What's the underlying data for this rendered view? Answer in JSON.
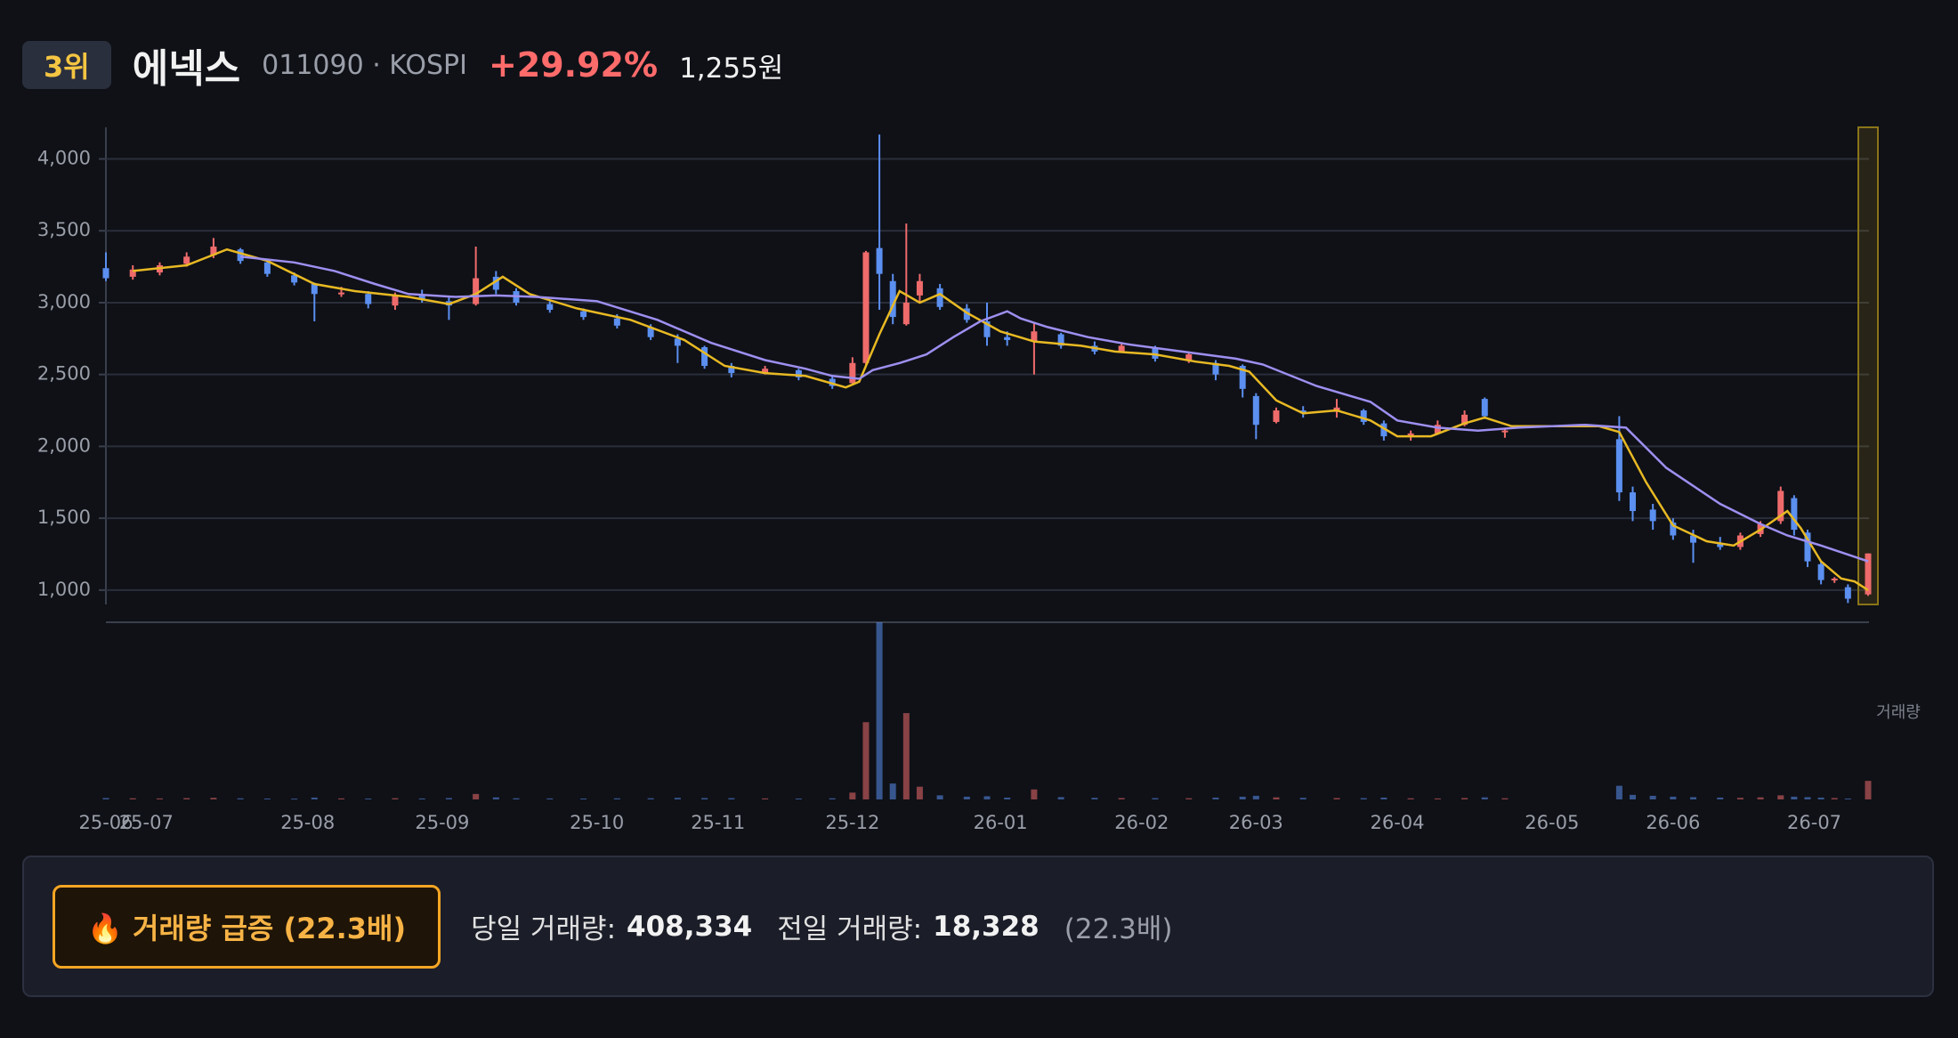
{
  "header": {
    "rank": "3위",
    "name": "에넥스",
    "code": "011090 · KOSPI",
    "change": "+29.92%",
    "price": "1,255원"
  },
  "summary": {
    "alert": "🔥 거래량 급증 (22.3배)",
    "today_label": "당일 거래량:",
    "today_value": "408,334",
    "prev_label": "전일 거래량:",
    "prev_value": "18,328",
    "ratio": "(22.3배)"
  },
  "chart_data": {
    "type": "candlestick",
    "up_color": "#ef6b6b",
    "down_color": "#5b8ff0",
    "xlim": [
      0,
      262
    ],
    "ylim": [
      900,
      4220
    ],
    "grid": true,
    "yticks": [
      {
        "value": 1000,
        "label": "1,000"
      },
      {
        "value": 1500,
        "label": "1,500"
      },
      {
        "value": 2000,
        "label": "2,000"
      },
      {
        "value": 2500,
        "label": "2,500"
      },
      {
        "value": 3000,
        "label": "3,000"
      },
      {
        "value": 3500,
        "label": "3,500"
      },
      {
        "value": 4000,
        "label": "4,000"
      }
    ],
    "xticks": [
      {
        "value": 0,
        "label": "25-06"
      },
      {
        "value": 6,
        "label": "25-07"
      },
      {
        "value": 30,
        "label": "25-08"
      },
      {
        "value": 50,
        "label": "25-09"
      },
      {
        "value": 73,
        "label": "25-10"
      },
      {
        "value": 91,
        "label": "25-11"
      },
      {
        "value": 111,
        "label": "25-12"
      },
      {
        "value": 133,
        "label": "26-01"
      },
      {
        "value": 154,
        "label": "26-02"
      },
      {
        "value": 171,
        "label": "26-03"
      },
      {
        "value": 192,
        "label": "26-04"
      },
      {
        "value": 215,
        "label": "26-05"
      },
      {
        "value": 233,
        "label": "26-06"
      },
      {
        "value": 254,
        "label": "26-07"
      }
    ],
    "candles": {
      "x": [
        0,
        4,
        8,
        12,
        16,
        20,
        24,
        28,
        31,
        35,
        39,
        43,
        47,
        51,
        55,
        58,
        61,
        66,
        71,
        76,
        81,
        85,
        89,
        93,
        98,
        103,
        108,
        111,
        113,
        115,
        117,
        119,
        121,
        124,
        128,
        131,
        134,
        138,
        142,
        147,
        151,
        156,
        161,
        165,
        169,
        171,
        174,
        178,
        183,
        187,
        190,
        194,
        198,
        202,
        205,
        208,
        225,
        227,
        230,
        233,
        236,
        240,
        243,
        246,
        249,
        251,
        253,
        255,
        257,
        259,
        262
      ],
      "open": [
        3240,
        3180,
        3210,
        3270,
        3330,
        3370,
        3280,
        3190,
        3130,
        3060,
        3060,
        2980,
        3050,
        3010,
        2990,
        3180,
        3080,
        2990,
        2940,
        2890,
        2830,
        2750,
        2690,
        2560,
        2510,
        2530,
        2470,
        2440,
        2580,
        3380,
        3150,
        2850,
        3050,
        3100,
        2960,
        2870,
        2760,
        2730,
        2780,
        2700,
        2660,
        2690,
        2600,
        2580,
        2560,
        2350,
        2170,
        2250,
        2240,
        2250,
        2160,
        2070,
        2090,
        2150,
        2330,
        2100,
        2050,
        1680,
        1560,
        1470,
        1380,
        1320,
        1300,
        1390,
        1480,
        1640,
        1400,
        1180,
        1070,
        1020,
        970
      ],
      "high": [
        3350,
        3260,
        3280,
        3350,
        3450,
        3380,
        3300,
        3210,
        3140,
        3110,
        3080,
        3070,
        3090,
        3040,
        3390,
        3220,
        3100,
        3010,
        2960,
        2920,
        2850,
        2780,
        2700,
        2580,
        2560,
        2540,
        2490,
        2620,
        3360,
        4170,
        3200,
        3550,
        3200,
        3130,
        2990,
        3000,
        2800,
        2860,
        2790,
        2730,
        2720,
        2700,
        2660,
        2600,
        2570,
        2370,
        2270,
        2280,
        2330,
        2260,
        2180,
        2110,
        2180,
        2250,
        2340,
        2130,
        2210,
        1720,
        1600,
        1500,
        1420,
        1370,
        1400,
        1480,
        1720,
        1660,
        1420,
        1200,
        1090,
        1040,
        1255
      ],
      "low": [
        3150,
        3160,
        3190,
        3250,
        3310,
        3270,
        3180,
        3120,
        2870,
        3040,
        2960,
        2950,
        3000,
        2880,
        2980,
        3060,
        2980,
        2930,
        2880,
        2820,
        2740,
        2580,
        2540,
        2480,
        2500,
        2460,
        2400,
        2430,
        2560,
        2950,
        2850,
        2840,
        3000,
        2950,
        2860,
        2700,
        2700,
        2500,
        2680,
        2640,
        2650,
        2590,
        2580,
        2460,
        2340,
        2050,
        2160,
        2200,
        2200,
        2150,
        2040,
        2040,
        2080,
        2140,
        2190,
        2060,
        1620,
        1480,
        1420,
        1350,
        1190,
        1280,
        1280,
        1370,
        1460,
        1380,
        1160,
        1040,
        1050,
        910,
        960
      ],
      "close": [
        3170,
        3230,
        3260,
        3320,
        3390,
        3290,
        3200,
        3140,
        3060,
        3070,
        2990,
        3050,
        3020,
        2980,
        3170,
        3090,
        3000,
        2950,
        2900,
        2840,
        2760,
        2700,
        2560,
        2510,
        2540,
        2480,
        2420,
        2580,
        3350,
        3200,
        2900,
        3000,
        3150,
        2970,
        2880,
        2760,
        2740,
        2800,
        2700,
        2660,
        2700,
        2610,
        2640,
        2500,
        2400,
        2150,
        2250,
        2230,
        2270,
        2170,
        2070,
        2090,
        2150,
        2220,
        2210,
        2110,
        1680,
        1550,
        1480,
        1380,
        1330,
        1300,
        1380,
        1460,
        1690,
        1420,
        1200,
        1070,
        1080,
        940,
        1255
      ],
      "volume": [
        30000,
        25000,
        22000,
        28000,
        35000,
        24000,
        20000,
        18000,
        40000,
        22000,
        20000,
        26000,
        21000,
        30000,
        120000,
        45000,
        25000,
        22000,
        20000,
        24000,
        26000,
        35000,
        30000,
        28000,
        22000,
        20000,
        25000,
        150000,
        1700000,
        3900000,
        350000,
        1900000,
        280000,
        90000,
        60000,
        70000,
        40000,
        220000,
        50000,
        35000,
        30000,
        28000,
        26000,
        40000,
        60000,
        80000,
        45000,
        35000,
        30000,
        28000,
        40000,
        25000,
        22000,
        30000,
        45000,
        25000,
        300000,
        100000,
        80000,
        60000,
        50000,
        40000,
        35000,
        45000,
        90000,
        60000,
        50000,
        40000,
        30000,
        20000,
        408334
      ]
    },
    "vol_ylim": [
      0,
      3900000
    ],
    "volume_label": "거래량",
    "lines": [
      {
        "color": "#e8b923",
        "x": [
          4,
          12,
          18,
          24,
          31,
          37,
          45,
          51,
          55,
          59,
          63,
          70,
          78,
          86,
          92,
          98,
          104,
          110,
          112,
          115,
          118,
          121,
          124,
          128,
          133,
          138,
          145,
          150,
          156,
          162,
          167,
          170,
          174,
          178,
          183,
          188,
          192,
          197,
          202,
          205,
          209,
          215,
          222,
          225,
          229,
          233,
          238,
          242,
          246,
          250,
          252,
          255,
          258,
          260,
          262
        ],
        "values": [
          3220,
          3260,
          3370,
          3290,
          3130,
          3080,
          3040,
          2990,
          3060,
          3180,
          3060,
          2960,
          2880,
          2740,
          2560,
          2510,
          2490,
          2410,
          2450,
          2780,
          3080,
          3000,
          3060,
          2930,
          2800,
          2730,
          2700,
          2660,
          2640,
          2590,
          2560,
          2520,
          2320,
          2230,
          2250,
          2180,
          2070,
          2070,
          2160,
          2200,
          2140,
          2140,
          2140,
          2100,
          1750,
          1450,
          1340,
          1310,
          1420,
          1550,
          1430,
          1200,
          1080,
          1060,
          1000
        ]
      },
      {
        "color": "#9d8ff0",
        "x": [
          20,
          28,
          34,
          40,
          45,
          52,
          58,
          64,
          73,
          82,
          90,
          98,
          104,
          108,
          112,
          114,
          118,
          122,
          126,
          130,
          134,
          136,
          140,
          146,
          152,
          160,
          168,
          172,
          180,
          188,
          192,
          198,
          204,
          210,
          220,
          226,
          232,
          240,
          246,
          250,
          255,
          262
        ],
        "values": [
          3320,
          3280,
          3220,
          3130,
          3060,
          3040,
          3050,
          3040,
          3010,
          2880,
          2720,
          2600,
          2540,
          2490,
          2470,
          2530,
          2580,
          2640,
          2760,
          2870,
          2940,
          2890,
          2830,
          2760,
          2710,
          2660,
          2610,
          2570,
          2420,
          2310,
          2180,
          2130,
          2110,
          2130,
          2150,
          2130,
          1850,
          1600,
          1460,
          1380,
          1310,
          1200
        ]
      }
    ]
  }
}
